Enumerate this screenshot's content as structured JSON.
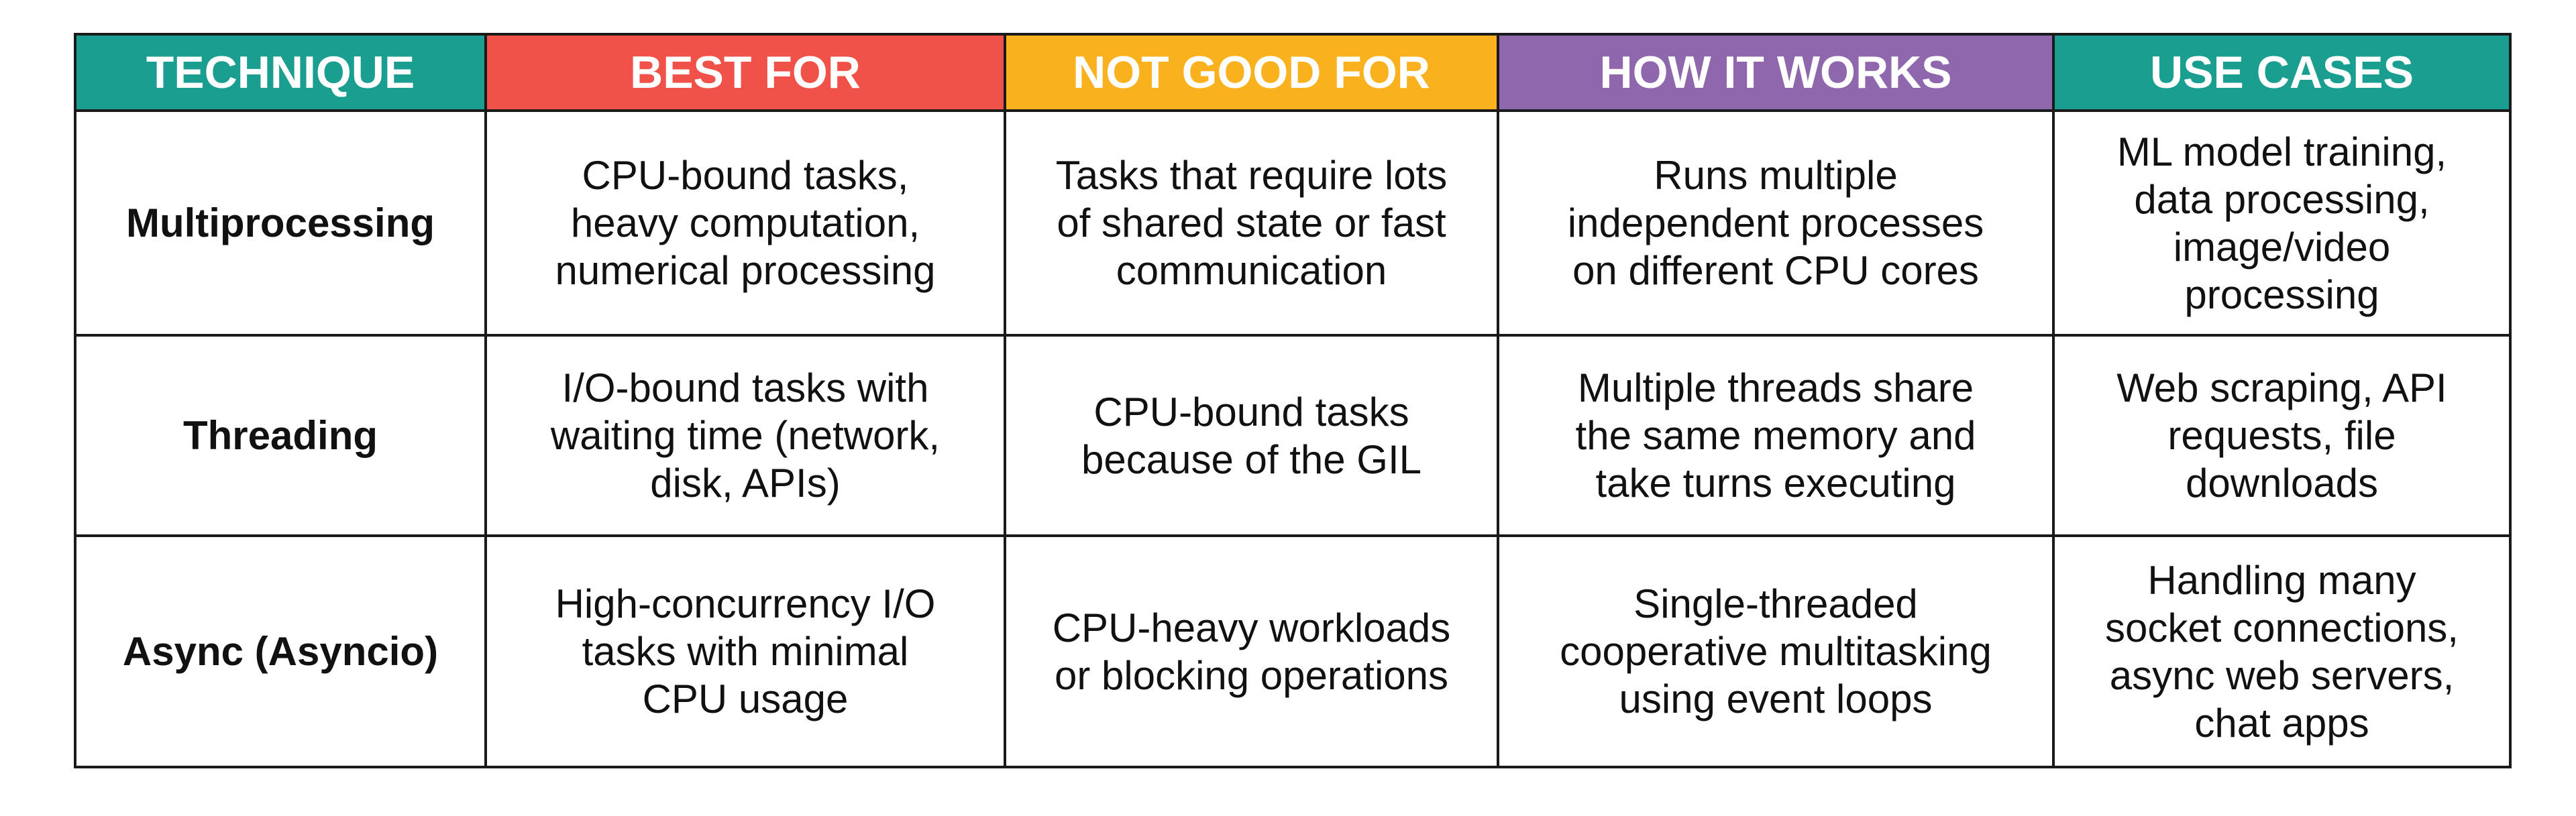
{
  "table": {
    "headers": [
      "TECHNIQUE",
      "BEST FOR",
      "NOT GOOD FOR",
      "HOW IT WORKS",
      "USE CASES"
    ],
    "rows": [
      [
        "Multiprocessing",
        [
          "CPU-bound tasks,",
          "heavy computation,",
          "numerical processing"
        ],
        [
          "Tasks that require lots",
          "of shared state or fast",
          "communication"
        ],
        [
          "Runs multiple",
          "independent processes",
          "on different CPU cores"
        ],
        [
          "ML model training,",
          "data processing,",
          "image/video",
          "processing"
        ]
      ],
      [
        "Threading",
        [
          "I/O-bound tasks with",
          "waiting time (network,",
          "disk, APIs)"
        ],
        [
          "CPU-bound tasks",
          "because of the GIL"
        ],
        [
          "Multiple threads share",
          "the same memory and",
          "take turns executing"
        ],
        [
          "Web scraping, API",
          "requests, file",
          "downloads"
        ]
      ],
      [
        "Async (Asyncio)",
        [
          "High-concurrency I/O",
          "tasks with minimal",
          "CPU usage"
        ],
        [
          "CPU-heavy workloads",
          "or blocking operations"
        ],
        [
          "Single-threaded",
          "cooperative multitasking",
          "using event loops"
        ],
        [
          "Handling many",
          "socket connections,",
          "async web servers,",
          "chat apps"
        ]
      ]
    ]
  }
}
